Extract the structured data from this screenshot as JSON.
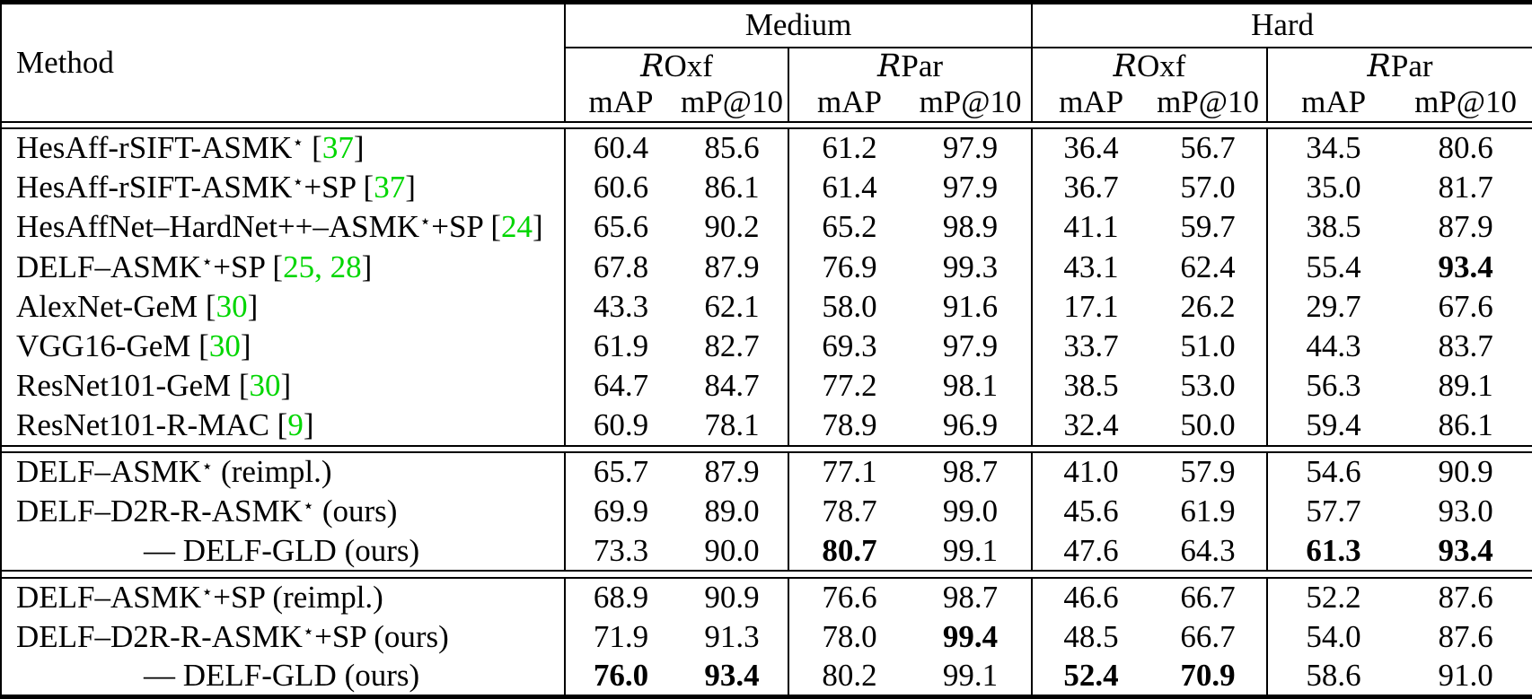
{
  "header": {
    "method_label": "Method",
    "group_labels": [
      "Medium",
      "Hard"
    ],
    "dataset_script_r": "R",
    "dataset_suffixes": [
      "Oxf",
      "Par"
    ],
    "metric_labels": [
      "mAP",
      "mP@10"
    ]
  },
  "symbols": {
    "star": "⋆"
  },
  "colors": {
    "citation_green": "#00d600",
    "rule_black": "#000000"
  },
  "groups": [
    {
      "rows": [
        {
          "method": [
            {
              "t": "HesAff-rSIFT-ASMK"
            },
            {
              "star": true
            },
            {
              "t": " ["
            },
            {
              "ref": "37"
            },
            {
              "t": "]"
            }
          ],
          "values": [
            "60.4",
            "85.6",
            "61.2",
            "97.9",
            "36.4",
            "56.7",
            "34.5",
            "80.6"
          ],
          "bold": []
        },
        {
          "method": [
            {
              "t": "HesAff-rSIFT-ASMK"
            },
            {
              "star": true
            },
            {
              "t": "+SP ["
            },
            {
              "ref": "37"
            },
            {
              "t": "]"
            }
          ],
          "values": [
            "60.6",
            "86.1",
            "61.4",
            "97.9",
            "36.7",
            "57.0",
            "35.0",
            "81.7"
          ],
          "bold": []
        },
        {
          "method": [
            {
              "t": "HesAffNet–HardNet++–ASMK"
            },
            {
              "star": true
            },
            {
              "t": "+SP ["
            },
            {
              "ref": "24"
            },
            {
              "t": "]"
            }
          ],
          "values": [
            "65.6",
            "90.2",
            "65.2",
            "98.9",
            "41.1",
            "59.7",
            "38.5",
            "87.9"
          ],
          "bold": []
        },
        {
          "method": [
            {
              "t": "DELF–ASMK"
            },
            {
              "star": true
            },
            {
              "t": "+SP ["
            },
            {
              "ref": "25, 28"
            },
            {
              "t": "]"
            }
          ],
          "values": [
            "67.8",
            "87.9",
            "76.9",
            "99.3",
            "43.1",
            "62.4",
            "55.4",
            "93.4"
          ],
          "bold": [
            7
          ]
        },
        {
          "method": [
            {
              "t": "AlexNet-GeM ["
            },
            {
              "ref": "30"
            },
            {
              "t": "]"
            }
          ],
          "values": [
            "43.3",
            "62.1",
            "58.0",
            "91.6",
            "17.1",
            "26.2",
            "29.7",
            "67.6"
          ],
          "bold": []
        },
        {
          "method": [
            {
              "t": "VGG16-GeM ["
            },
            {
              "ref": "30"
            },
            {
              "t": "]"
            }
          ],
          "values": [
            "61.9",
            "82.7",
            "69.3",
            "97.9",
            "33.7",
            "51.0",
            "44.3",
            "83.7"
          ],
          "bold": []
        },
        {
          "method": [
            {
              "t": "ResNet101-GeM ["
            },
            {
              "ref": "30"
            },
            {
              "t": "]"
            }
          ],
          "values": [
            "64.7",
            "84.7",
            "77.2",
            "98.1",
            "38.5",
            "53.0",
            "56.3",
            "89.1"
          ],
          "bold": []
        },
        {
          "method": [
            {
              "t": "ResNet101-R-MAC ["
            },
            {
              "ref": "9"
            },
            {
              "t": "]"
            }
          ],
          "values": [
            "60.9",
            "78.1",
            "78.9",
            "96.9",
            "32.4",
            "50.0",
            "59.4",
            "86.1"
          ],
          "bold": []
        }
      ]
    },
    {
      "rows": [
        {
          "method": [
            {
              "t": "DELF–ASMK"
            },
            {
              "star": true
            },
            {
              "t": " (reimpl.)"
            }
          ],
          "values": [
            "65.7",
            "87.9",
            "77.1",
            "98.7",
            "41.0",
            "57.9",
            "54.6",
            "90.9"
          ],
          "bold": []
        },
        {
          "method": [
            {
              "t": "DELF–D2R-R-ASMK"
            },
            {
              "star": true
            },
            {
              "t": " (ours)"
            }
          ],
          "values": [
            "69.9",
            "89.0",
            "78.7",
            "99.0",
            "45.6",
            "61.9",
            "57.7",
            "93.0"
          ],
          "bold": []
        },
        {
          "method": [
            {
              "t": "— DELF-GLD (ours)"
            }
          ],
          "indent": true,
          "values": [
            "73.3",
            "90.0",
            "80.7",
            "99.1",
            "47.6",
            "64.3",
            "61.3",
            "93.4"
          ],
          "bold": [
            2,
            6,
            7
          ]
        }
      ]
    },
    {
      "rows": [
        {
          "method": [
            {
              "t": "DELF–ASMK"
            },
            {
              "star": true
            },
            {
              "t": "+SP (reimpl.)"
            }
          ],
          "values": [
            "68.9",
            "90.9",
            "76.6",
            "98.7",
            "46.6",
            "66.7",
            "52.2",
            "87.6"
          ],
          "bold": []
        },
        {
          "method": [
            {
              "t": "DELF–D2R-R-ASMK"
            },
            {
              "star": true
            },
            {
              "t": "+SP (ours)"
            }
          ],
          "values": [
            "71.9",
            "91.3",
            "78.0",
            "99.4",
            "48.5",
            "66.7",
            "54.0",
            "87.6"
          ],
          "bold": [
            3
          ]
        },
        {
          "method": [
            {
              "t": "— DELF-GLD (ours)"
            }
          ],
          "indent": true,
          "values": [
            "76.0",
            "93.4",
            "80.2",
            "99.1",
            "52.4",
            "70.9",
            "58.6",
            "91.0"
          ],
          "bold": [
            0,
            1,
            4,
            5
          ]
        }
      ]
    }
  ]
}
